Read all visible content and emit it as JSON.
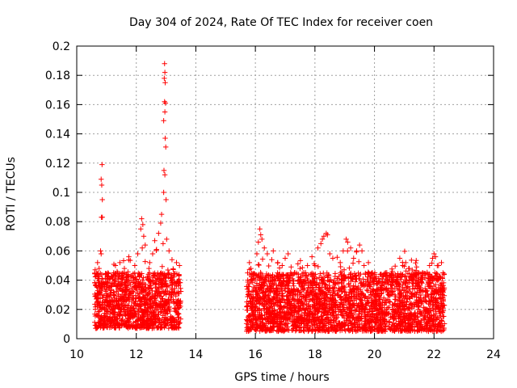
{
  "chart_data": {
    "type": "scatter",
    "title": "Day 304 of 2024, Rate Of TEC Index for receiver coen",
    "xlabel": "GPS time / hours",
    "ylabel": "ROTI / TECUs",
    "xlim": [
      10,
      24
    ],
    "ylim": [
      0,
      0.2
    ],
    "xticks": [
      10,
      12,
      14,
      16,
      18,
      20,
      22,
      24
    ],
    "yticks": [
      0,
      0.02,
      0.04,
      0.06,
      0.08,
      0.1,
      0.12,
      0.14,
      0.16,
      0.18,
      0.2
    ],
    "xtick_labels": [
      "10",
      "12",
      "14",
      "16",
      "18",
      "20",
      "22",
      "24"
    ],
    "ytick_labels": [
      "0",
      "0.02",
      "0.04",
      "0.06",
      "0.08",
      "0.1",
      "0.12",
      "0.14",
      "0.16",
      "0.18",
      "0.2"
    ],
    "grid": true,
    "marker": "+",
    "colors": {
      "points": "#ff0000",
      "grid": "#a0a0a0",
      "axes": "#000000"
    },
    "series": [
      {
        "name": "ROTI",
        "segments": [
          {
            "x_range": [
              10.6,
              13.5
            ],
            "y_base_range": [
              0.01,
              0.04
            ]
          },
          {
            "x_range": [
              15.7,
              22.35
            ],
            "y_base_range": [
              0.008,
              0.04
            ]
          }
        ],
        "points": [
          [
            10.85,
            0.119
          ],
          [
            10.82,
            0.109
          ],
          [
            10.84,
            0.105
          ],
          [
            10.86,
            0.095
          ],
          [
            10.83,
            0.083
          ],
          [
            10.86,
            0.083
          ],
          [
            10.8,
            0.06
          ],
          [
            10.82,
            0.058
          ],
          [
            10.7,
            0.052
          ],
          [
            10.75,
            0.048
          ],
          [
            11.05,
            0.045
          ],
          [
            11.3,
            0.05
          ],
          [
            11.45,
            0.052
          ],
          [
            11.6,
            0.048
          ],
          [
            11.75,
            0.056
          ],
          [
            11.95,
            0.05
          ],
          [
            12.05,
            0.058
          ],
          [
            12.15,
            0.075
          ],
          [
            12.18,
            0.082
          ],
          [
            12.22,
            0.078
          ],
          [
            12.25,
            0.07
          ],
          [
            12.3,
            0.064
          ],
          [
            12.2,
            0.062
          ],
          [
            12.45,
            0.052
          ],
          [
            12.55,
            0.058
          ],
          [
            12.62,
            0.067
          ],
          [
            12.68,
            0.061
          ],
          [
            12.75,
            0.072
          ],
          [
            12.82,
            0.079
          ],
          [
            12.85,
            0.085
          ],
          [
            12.9,
            0.065
          ],
          [
            12.95,
            0.188
          ],
          [
            12.96,
            0.182
          ],
          [
            12.94,
            0.178
          ],
          [
            12.97,
            0.175
          ],
          [
            12.95,
            0.162
          ],
          [
            12.98,
            0.161
          ],
          [
            12.96,
            0.155
          ],
          [
            12.92,
            0.149
          ],
          [
            12.97,
            0.137
          ],
          [
            12.99,
            0.131
          ],
          [
            12.93,
            0.115
          ],
          [
            12.96,
            0.112
          ],
          [
            12.92,
            0.1
          ],
          [
            13.0,
            0.095
          ],
          [
            13.02,
            0.068
          ],
          [
            13.1,
            0.06
          ],
          [
            13.2,
            0.054
          ],
          [
            13.35,
            0.052
          ],
          [
            13.45,
            0.05
          ],
          [
            15.8,
            0.052
          ],
          [
            15.85,
            0.048
          ],
          [
            16.05,
            0.058
          ],
          [
            16.1,
            0.066
          ],
          [
            16.15,
            0.075
          ],
          [
            16.18,
            0.071
          ],
          [
            16.22,
            0.068
          ],
          [
            16.3,
            0.062
          ],
          [
            16.4,
            0.058
          ],
          [
            16.55,
            0.054
          ],
          [
            16.6,
            0.06
          ],
          [
            16.75,
            0.052
          ],
          [
            16.9,
            0.05
          ],
          [
            17.0,
            0.055
          ],
          [
            17.1,
            0.058
          ],
          [
            17.2,
            0.049
          ],
          [
            17.5,
            0.048
          ],
          [
            17.75,
            0.05
          ],
          [
            17.9,
            0.056
          ],
          [
            18.0,
            0.05
          ],
          [
            18.1,
            0.062
          ],
          [
            18.2,
            0.065
          ],
          [
            18.25,
            0.068
          ],
          [
            18.3,
            0.07
          ],
          [
            18.38,
            0.072
          ],
          [
            18.42,
            0.071
          ],
          [
            18.5,
            0.058
          ],
          [
            18.6,
            0.055
          ],
          [
            18.85,
            0.052
          ],
          [
            18.95,
            0.06
          ],
          [
            19.05,
            0.068
          ],
          [
            19.1,
            0.066
          ],
          [
            19.2,
            0.062
          ],
          [
            19.3,
            0.055
          ],
          [
            19.4,
            0.06
          ],
          [
            19.5,
            0.064
          ],
          [
            19.58,
            0.06
          ],
          [
            19.65,
            0.05
          ],
          [
            19.8,
            0.045
          ],
          [
            20.0,
            0.044
          ],
          [
            20.3,
            0.043
          ],
          [
            20.6,
            0.046
          ],
          [
            20.85,
            0.055
          ],
          [
            20.95,
            0.05
          ],
          [
            21.05,
            0.052
          ],
          [
            21.15,
            0.048
          ],
          [
            21.3,
            0.04
          ],
          [
            21.6,
            0.038
          ],
          [
            21.85,
            0.05
          ],
          [
            21.95,
            0.055
          ],
          [
            22.0,
            0.058
          ],
          [
            22.05,
            0.056
          ],
          [
            22.15,
            0.05
          ],
          [
            22.25,
            0.052
          ],
          [
            22.3,
            0.045
          ]
        ]
      }
    ]
  }
}
